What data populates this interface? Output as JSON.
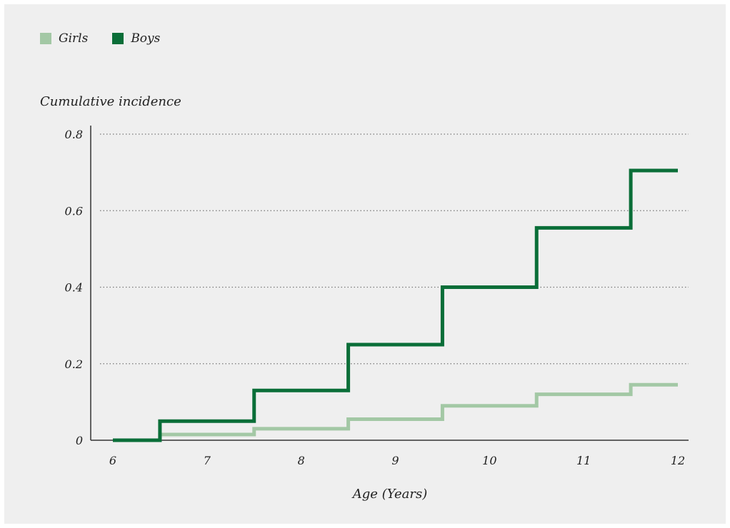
{
  "colors": {
    "girls": "#a3c8a5",
    "boys": "#0a6e38",
    "grid": "#777777",
    "axis": "#333333"
  },
  "chart_data": {
    "type": "line",
    "step": true,
    "ylabel": "Cumulative incidence",
    "xlabel": "Age (Years)",
    "xlim": [
      6,
      12
    ],
    "ylim": [
      0,
      0.8
    ],
    "x_ticks": [
      6,
      7,
      8,
      9,
      10,
      11,
      12
    ],
    "y_ticks": [
      0,
      0.2,
      0.4,
      0.6,
      0.8
    ],
    "y_tick_labels": [
      "0",
      "0.2",
      "0.4",
      "0.6",
      "0.8"
    ],
    "grid": "horizontal dotted",
    "legend_position": "top-left",
    "series": [
      {
        "name": "Girls",
        "color": "#a3c8a5",
        "x": [
          6,
          6.5,
          7.5,
          8.5,
          9.5,
          10.5,
          11.5,
          12
        ],
        "y": [
          0,
          0.015,
          0.03,
          0.055,
          0.09,
          0.12,
          0.145,
          0.145
        ]
      },
      {
        "name": "Boys",
        "color": "#0a6e38",
        "x": [
          6,
          6.5,
          7.5,
          8.5,
          9.5,
          10.5,
          11.5,
          12
        ],
        "y": [
          0,
          0.05,
          0.13,
          0.25,
          0.4,
          0.555,
          0.705,
          0.705
        ]
      }
    ]
  }
}
